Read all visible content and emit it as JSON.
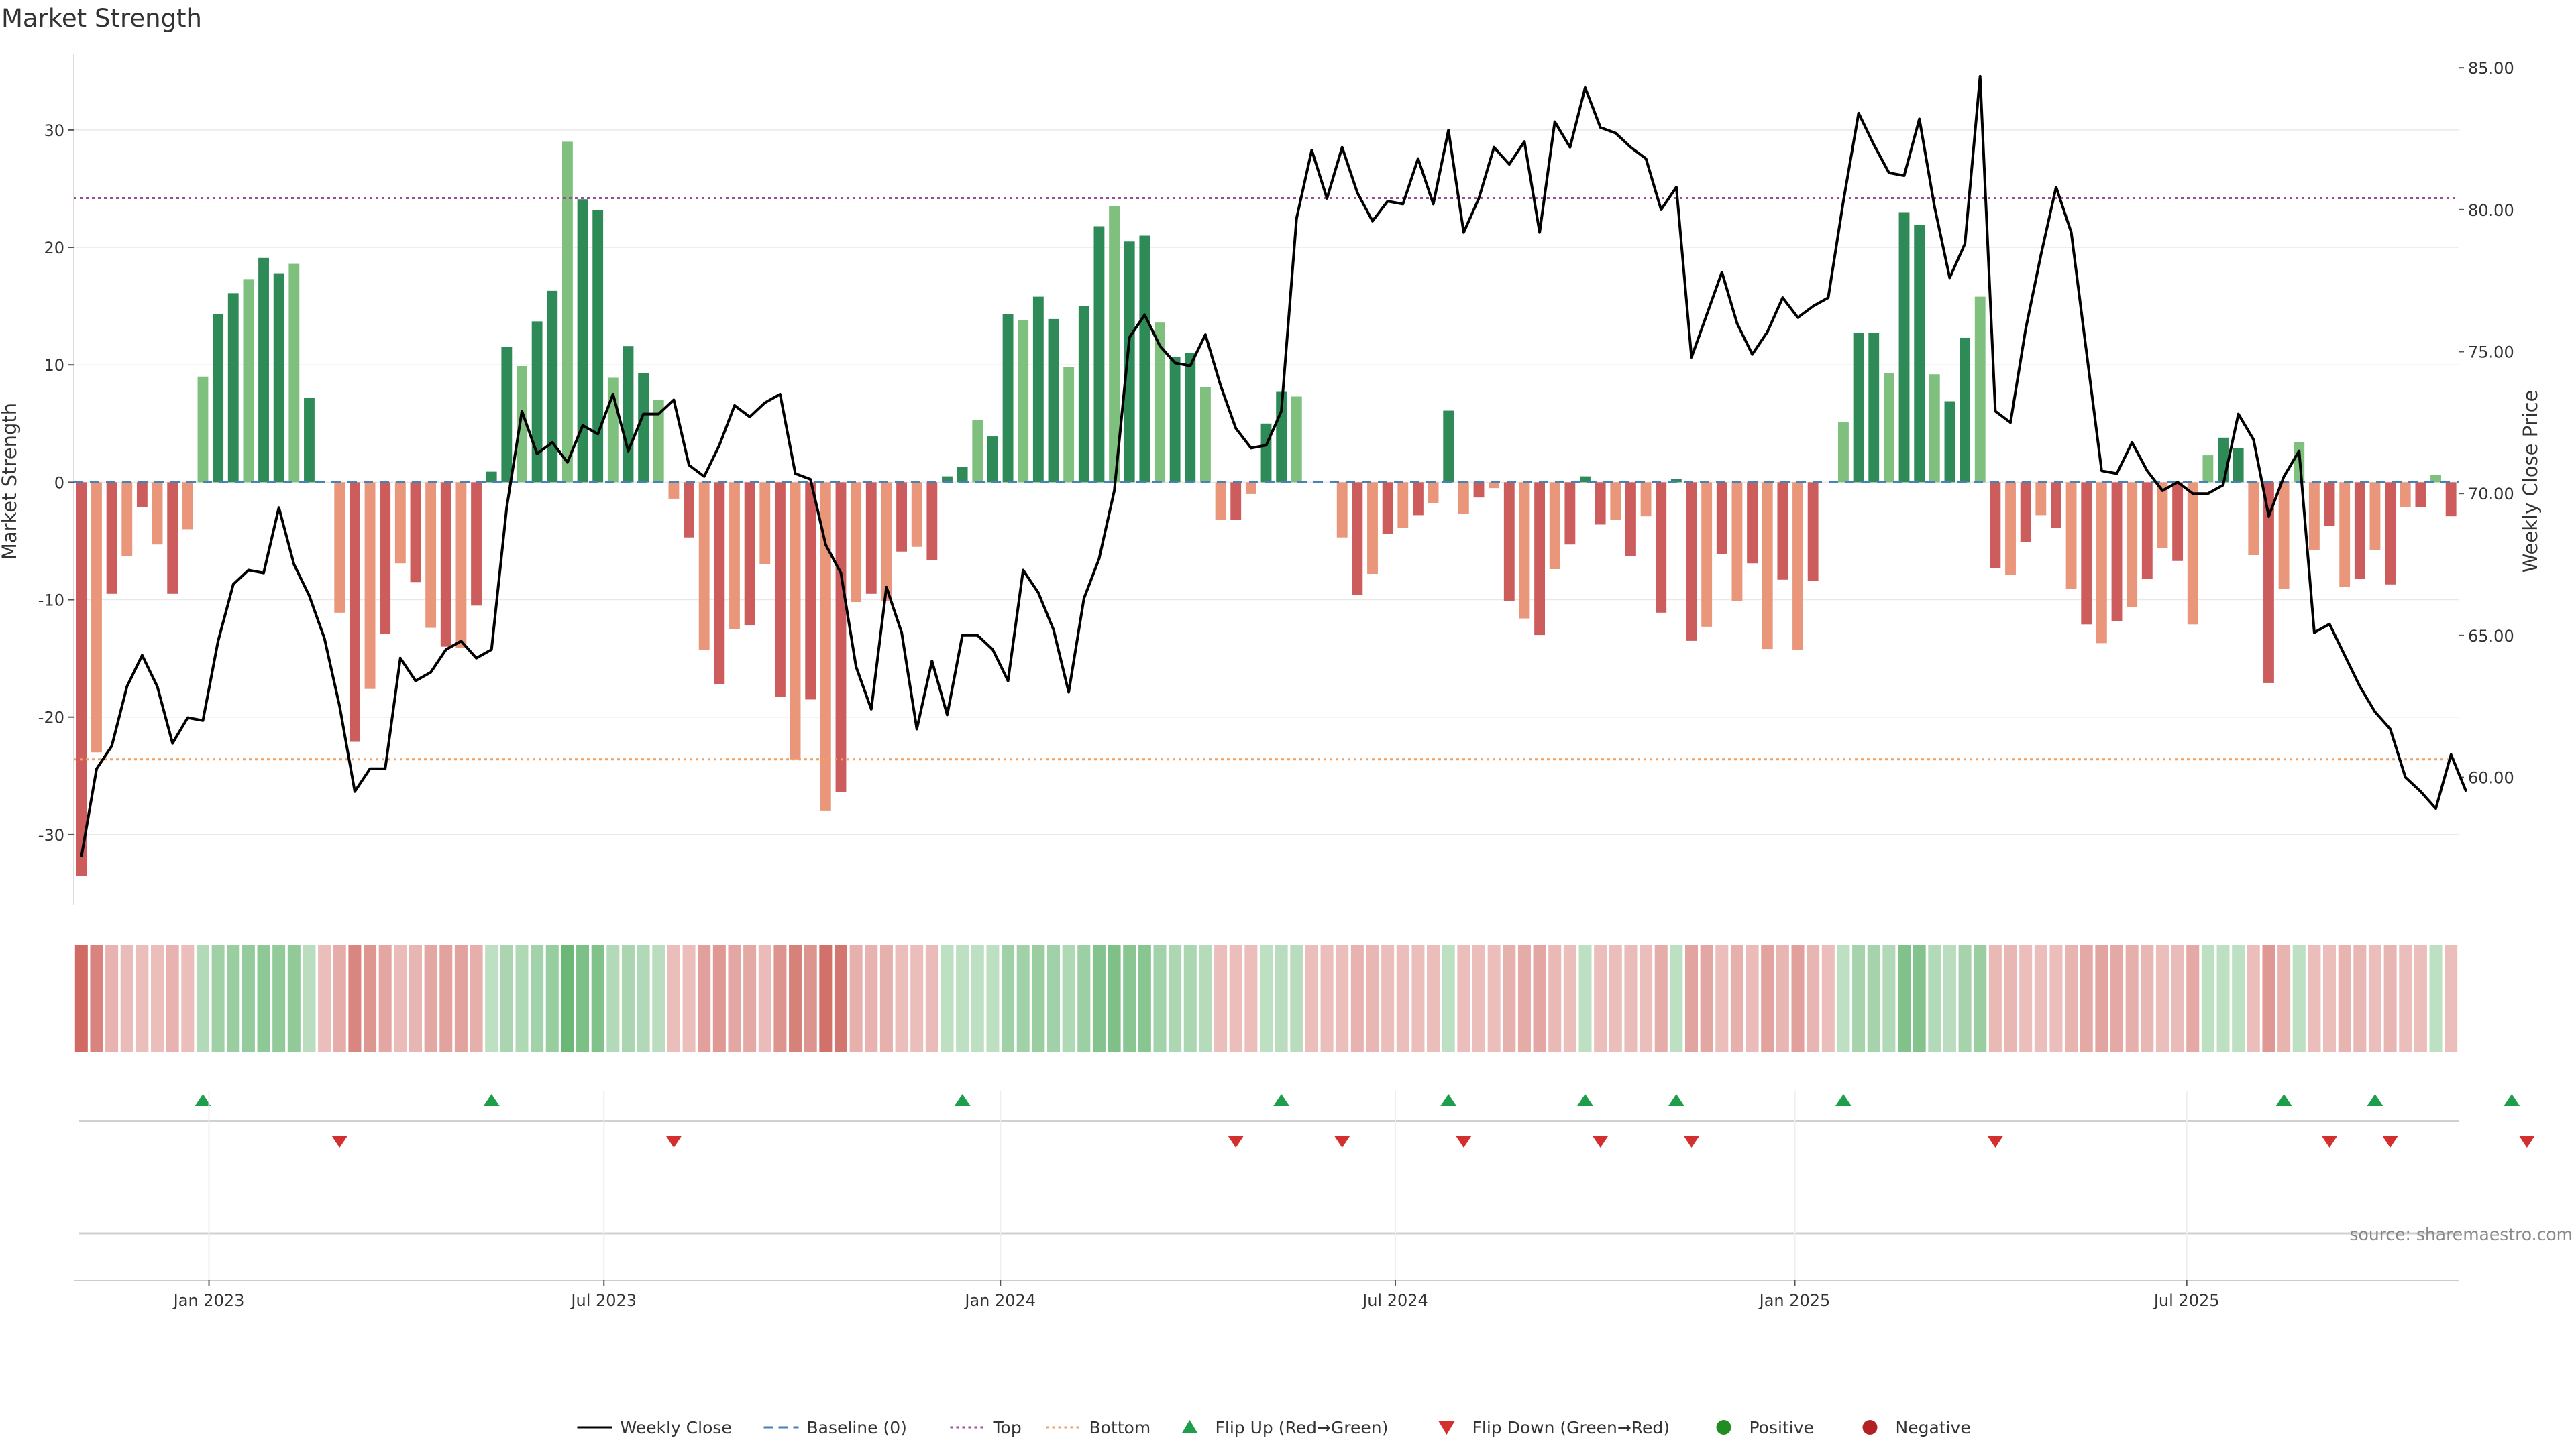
{
  "chart_data": {
    "type": "bar",
    "title": "Market Strength",
    "ylabel_left": "Market Strength",
    "ylabel_right": "Weekly Close Price",
    "ylim_left": [
      -36,
      36.5
    ],
    "ylim_right": [
      55.5,
      85.5
    ],
    "yticks_left": [
      "-30",
      "-20",
      "-10",
      "0",
      "10",
      "20",
      "30"
    ],
    "yticks_right": [
      "60.00",
      "65.00",
      "70.00",
      "75.00",
      "80.00",
      "85.00"
    ],
    "top_line": 24.2,
    "bottom_line": -23.6,
    "x_start": "2022-11-05",
    "week_count": 162,
    "x_tick_labels": [
      {
        "label": "Jan 2023",
        "week": 8.9
      },
      {
        "label": "Jul 2023",
        "week": 34.9
      },
      {
        "label": "Jan 2024",
        "week": 61.0
      },
      {
        "label": "Jul 2024",
        "week": 87.0
      },
      {
        "label": "Jan 2025",
        "week": 113.3
      },
      {
        "label": "Jul 2025",
        "week": 139.1
      }
    ],
    "series": [
      {
        "name": "Market Strength",
        "values": [
          -33.5,
          -23,
          -9.5,
          -6.3,
          -2.1,
          -5.3,
          -9.5,
          -4,
          9,
          14.3,
          16.1,
          17.3,
          19.1,
          17.8,
          18.6,
          7.2,
          0,
          -11.1,
          -22.1,
          -17.6,
          -12.9,
          -6.9,
          -8.5,
          -12.4,
          -14,
          -14.1,
          -10.5,
          0.9,
          11.5,
          9.9,
          13.7,
          16.3,
          29,
          24.1,
          23.2,
          8.9,
          11.6,
          9.3,
          7,
          -1.4,
          -4.7,
          -14.3,
          -17.2,
          -12.5,
          -12.2,
          -7,
          -18.3,
          -23.6,
          -18.5,
          -28,
          -26.4,
          -10.2,
          -9.5,
          -10.1,
          -5.9,
          -5.5,
          -6.6,
          0.5,
          1.3,
          5.3,
          3.9,
          14.3,
          13.8,
          15.8,
          13.9,
          9.8,
          15,
          21.8,
          23.5,
          20.5,
          21,
          13.6,
          10.7,
          11,
          8.1,
          -3.2,
          -3.2,
          -1,
          5,
          7.7,
          7.3,
          0,
          0,
          -4.7,
          -9.6,
          -7.8,
          -4.4,
          -3.9,
          -2.8,
          -1.8,
          6.1,
          -2.7,
          -1.3,
          -0.5,
          -10.1,
          -11.6,
          -13,
          -7.4,
          -5.3,
          0.5,
          -3.6,
          -3.2,
          -6.3,
          -2.9,
          -11.1,
          0.3,
          -13.5,
          -12.3,
          -6.1,
          -10.1,
          -6.9,
          -14.2,
          -8.3,
          -14.3,
          -8.4,
          0,
          5.1,
          12.7,
          12.7,
          9.3,
          23,
          21.9,
          9.2,
          6.9,
          12.3,
          15.8,
          -7.3,
          -7.9,
          -5.1,
          -2.8,
          -3.9,
          -9.1,
          -12.1,
          -13.7,
          -11.8,
          -10.6,
          -8.2,
          -5.6,
          -6.7,
          -12.1,
          2.3,
          3.8,
          2.9,
          -6.2,
          -17.1,
          -9.1,
          3.4,
          -5.8,
          -3.7,
          -8.9,
          -8.2,
          -5.8,
          -8.7,
          -2.1,
          -2.1,
          0.6,
          -2.9
        ]
      },
      {
        "name": "Weekly Close",
        "values": [
          57.2,
          60.3,
          61.1,
          63.2,
          64.3,
          63.2,
          61.2,
          62.1,
          62,
          64.8,
          66.8,
          67.3,
          67.2,
          69.5,
          67.5,
          66.4,
          64.9,
          62.5,
          59.5,
          60.3,
          60.3,
          64.2,
          63.4,
          63.7,
          64.5,
          64.8,
          64.2,
          64.5,
          69.5,
          72.9,
          71.4,
          71.8,
          71.1,
          72.4,
          72.1,
          73.5,
          71.5,
          72.8,
          72.8,
          73.3,
          71,
          70.6,
          71.7,
          73.1,
          72.7,
          73.2,
          73.5,
          70.7,
          70.5,
          68.2,
          67.2,
          63.9,
          62.4,
          66.7,
          65.1,
          61.7,
          64.1,
          62.2,
          65,
          65,
          64.5,
          63.4,
          67.3,
          66.5,
          65.2,
          63,
          66.3,
          67.7,
          70.1,
          75.5,
          76.3,
          75.2,
          74.6,
          74.5,
          75.6,
          73.8,
          72.3,
          71.6,
          71.7,
          72.9,
          79.7,
          82.1,
          80.4,
          82.2,
          80.6,
          79.6,
          80.3,
          80.2,
          81.8,
          80.2,
          82.8,
          79.2,
          80.4,
          82.2,
          81.6,
          82.4,
          79.2,
          83.1,
          82.2,
          84.3,
          82.9,
          82.7,
          82.2,
          81.8,
          80,
          80.8,
          74.8,
          76.3,
          77.8,
          76,
          74.9,
          75.7,
          76.9,
          76.2,
          76.6,
          76.9,
          80.3,
          83.4,
          82.3,
          81.3,
          81.2,
          83.2,
          80.1,
          77.6,
          78.8,
          84.7,
          72.9,
          72.5,
          75.8,
          78.4,
          80.8,
          79.2,
          75,
          70.8,
          70.7,
          71.8,
          70.8,
          70.1,
          70.4,
          70,
          70,
          70.3,
          72.8,
          71.9,
          69.2,
          70.6,
          71.5,
          65.1,
          65.4,
          64.3,
          63.2,
          62.3,
          61.7,
          60,
          59.5,
          58.9,
          60.8,
          59.5
        ]
      }
    ],
    "markers": {
      "flip_up_weeks": [
        8,
        27,
        58,
        79,
        90,
        99,
        105,
        116,
        145,
        151,
        160
      ],
      "flip_down_weeks": [
        17,
        39,
        76,
        83,
        91,
        100,
        106,
        126,
        148,
        152,
        161
      ]
    },
    "legend": [
      {
        "label": "Weekly Close",
        "kind": "line-solid",
        "color": "#000000"
      },
      {
        "label": "Baseline (0)",
        "kind": "line-dashed",
        "color": "#4682b4"
      },
      {
        "label": "Top",
        "kind": "line-dotted",
        "color": "#9b4d96"
      },
      {
        "label": "Bottom",
        "kind": "line-dotted",
        "color": "#f0a060"
      },
      {
        "label": "Flip Up (Red→Green)",
        "kind": "triangle-up",
        "color": "#1e9e4a"
      },
      {
        "label": "Flip Down (Green→Red)",
        "kind": "triangle-down",
        "color": "#d32f2f"
      },
      {
        "label": "Positive",
        "kind": "circle",
        "color": "#228b22"
      },
      {
        "label": "Negative",
        "kind": "circle",
        "color": "#b22222"
      }
    ],
    "legend_position": "bottom-center",
    "source_note": "source: sharemaestro.com"
  },
  "colors": {
    "strong_green": "#2e8b57",
    "mid_green": "#5aab6e",
    "light_green": "#7fc07f",
    "strong_red": "#cd5c5c",
    "light_red": "#e9967a",
    "price_line": "#000000",
    "top_line": "#9b4d96",
    "bottom_line": "#f0a060",
    "baseline": "#4682b4",
    "grid": "#e8e8e8"
  }
}
